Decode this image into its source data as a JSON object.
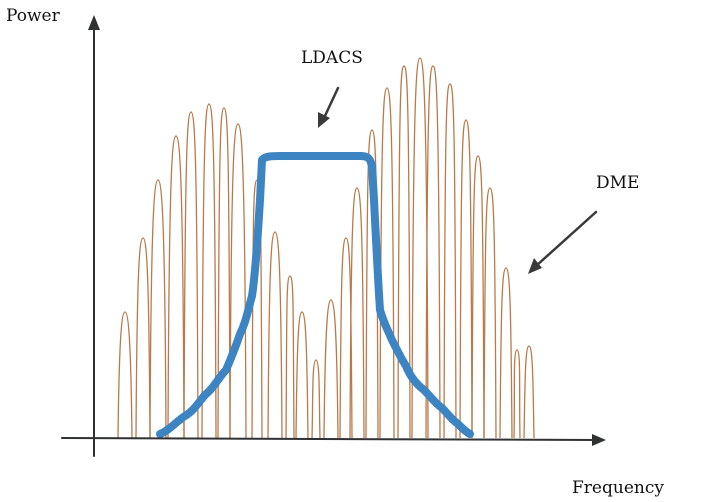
{
  "axes": {
    "y_label": "Power",
    "x_label": "Frequency"
  },
  "annotations": {
    "ldacs": "LDACS",
    "dme": "DME"
  },
  "colors": {
    "axis": "#2f3133",
    "dme_spectrum": "#b87a4b",
    "ldacs_spectrum": "#3c85c2",
    "arrow": "#3a3a3a"
  }
}
